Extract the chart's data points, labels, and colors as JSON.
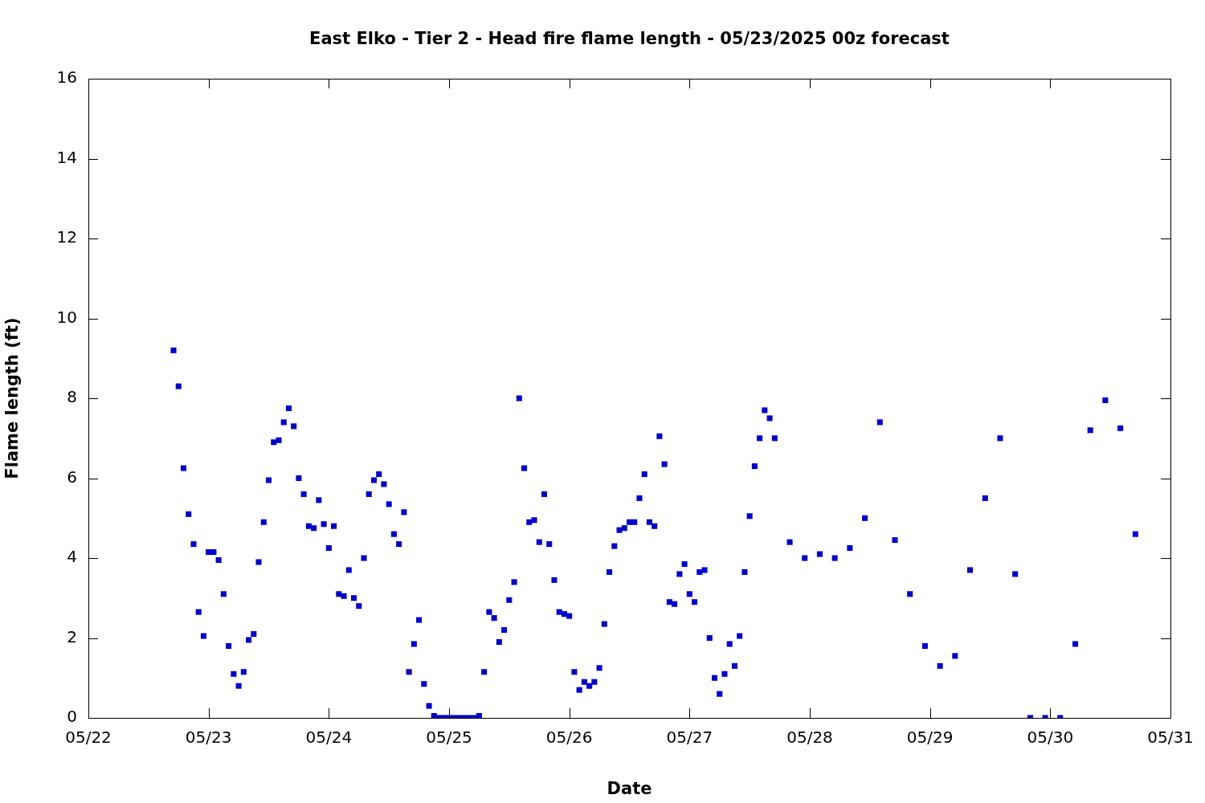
{
  "chart_data": {
    "type": "scatter",
    "title": "East Elko - Tier 2 - Head fire flame length - 05/23/2025 00z forecast",
    "xlabel": "Date",
    "ylabel": "Flame length (ft)",
    "x": [
      "2025-05-22T17:00",
      "2025-05-22T18:00",
      "2025-05-22T19:00",
      "2025-05-22T20:00",
      "2025-05-22T21:00",
      "2025-05-22T22:00",
      "2025-05-22T23:00",
      "2025-05-23T00:00",
      "2025-05-23T01:00",
      "2025-05-23T02:00",
      "2025-05-23T03:00",
      "2025-05-23T04:00",
      "2025-05-23T05:00",
      "2025-05-23T06:00",
      "2025-05-23T07:00",
      "2025-05-23T08:00",
      "2025-05-23T09:00",
      "2025-05-23T10:00",
      "2025-05-23T11:00",
      "2025-05-23T12:00",
      "2025-05-23T13:00",
      "2025-05-23T14:00",
      "2025-05-23T15:00",
      "2025-05-23T16:00",
      "2025-05-23T17:00",
      "2025-05-23T18:00",
      "2025-05-23T19:00",
      "2025-05-23T20:00",
      "2025-05-23T21:00",
      "2025-05-23T22:00",
      "2025-05-23T23:00",
      "2025-05-24T00:00",
      "2025-05-24T01:00",
      "2025-05-24T02:00",
      "2025-05-24T03:00",
      "2025-05-24T04:00",
      "2025-05-24T05:00",
      "2025-05-24T06:00",
      "2025-05-24T07:00",
      "2025-05-24T08:00",
      "2025-05-24T09:00",
      "2025-05-24T10:00",
      "2025-05-24T11:00",
      "2025-05-24T12:00",
      "2025-05-24T13:00",
      "2025-05-24T14:00",
      "2025-05-24T15:00",
      "2025-05-24T16:00",
      "2025-05-24T17:00",
      "2025-05-24T18:00",
      "2025-05-24T19:00",
      "2025-05-24T20:00",
      "2025-05-24T21:00",
      "2025-05-24T22:00",
      "2025-05-24T23:00",
      "2025-05-25T00:00",
      "2025-05-25T01:00",
      "2025-05-25T02:00",
      "2025-05-25T03:00",
      "2025-05-25T04:00",
      "2025-05-25T05:00",
      "2025-05-25T06:00",
      "2025-05-25T07:00",
      "2025-05-25T08:00",
      "2025-05-25T09:00",
      "2025-05-25T10:00",
      "2025-05-25T11:00",
      "2025-05-25T12:00",
      "2025-05-25T13:00",
      "2025-05-25T14:00",
      "2025-05-25T15:00",
      "2025-05-25T16:00",
      "2025-05-25T17:00",
      "2025-05-25T18:00",
      "2025-05-25T19:00",
      "2025-05-25T20:00",
      "2025-05-25T21:00",
      "2025-05-25T22:00",
      "2025-05-25T23:00",
      "2025-05-26T00:00",
      "2025-05-26T01:00",
      "2025-05-26T02:00",
      "2025-05-26T03:00",
      "2025-05-26T04:00",
      "2025-05-26T05:00",
      "2025-05-26T06:00",
      "2025-05-26T07:00",
      "2025-05-26T08:00",
      "2025-05-26T09:00",
      "2025-05-26T10:00",
      "2025-05-26T11:00",
      "2025-05-26T12:00",
      "2025-05-26T13:00",
      "2025-05-26T14:00",
      "2025-05-26T15:00",
      "2025-05-26T16:00",
      "2025-05-26T17:00",
      "2025-05-26T18:00",
      "2025-05-26T19:00",
      "2025-05-26T20:00",
      "2025-05-26T21:00",
      "2025-05-26T22:00",
      "2025-05-26T23:00",
      "2025-05-27T00:00",
      "2025-05-27T01:00",
      "2025-05-27T02:00",
      "2025-05-27T03:00",
      "2025-05-27T04:00",
      "2025-05-27T05:00",
      "2025-05-27T06:00",
      "2025-05-27T07:00",
      "2025-05-27T08:00",
      "2025-05-27T09:00",
      "2025-05-27T10:00",
      "2025-05-27T11:00",
      "2025-05-27T12:00",
      "2025-05-27T13:00",
      "2025-05-27T14:00",
      "2025-05-27T15:00",
      "2025-05-27T16:00",
      "2025-05-27T17:00",
      "2025-05-27T20:00",
      "2025-05-27T23:00",
      "2025-05-28T02:00",
      "2025-05-28T05:00",
      "2025-05-28T08:00",
      "2025-05-28T11:00",
      "2025-05-28T14:00",
      "2025-05-28T17:00",
      "2025-05-28T20:00",
      "2025-05-28T23:00",
      "2025-05-29T02:00",
      "2025-05-29T05:00",
      "2025-05-29T08:00",
      "2025-05-29T11:00",
      "2025-05-29T14:00",
      "2025-05-29T17:00",
      "2025-05-29T20:00",
      "2025-05-29T23:00",
      "2025-05-30T02:00",
      "2025-05-30T05:00",
      "2025-05-30T08:00",
      "2025-05-30T11:00",
      "2025-05-30T14:00",
      "2025-05-30T17:00"
    ],
    "series": [
      {
        "color": "#0000cc",
        "values": [
          9.2,
          8.3,
          6.25,
          5.1,
          4.35,
          2.65,
          2.05,
          4.15,
          4.15,
          3.95,
          3.1,
          1.8,
          1.1,
          0.8,
          1.15,
          1.95,
          2.1,
          3.9,
          4.9,
          5.95,
          6.9,
          6.95,
          7.4,
          7.75,
          7.3,
          6,
          5.6,
          4.8,
          4.75,
          5.45,
          4.85,
          4.25,
          4.8,
          3.1,
          3.05,
          3.7,
          3,
          2.8,
          4,
          5.6,
          5.95,
          6.1,
          5.85,
          5.35,
          4.6,
          4.35,
          5.15,
          1.15,
          1.85,
          2.45,
          0.85,
          0.3,
          0.05,
          0,
          0,
          0,
          0,
          0,
          0,
          0,
          0,
          0.05,
          1.15,
          2.65,
          2.5,
          1.9,
          2.2,
          2.95,
          3.4,
          8,
          6.25,
          4.9,
          4.95,
          4.4,
          5.6,
          4.35,
          3.45,
          2.65,
          2.6,
          2.55,
          1.15,
          0.7,
          0.9,
          0.8,
          0.9,
          1.25,
          2.35,
          3.65,
          4.3,
          4.7,
          4.75,
          4.9,
          4.9,
          5.5,
          6.1,
          4.9,
          4.8,
          7.05,
          6.35,
          2.9,
          2.85,
          3.6,
          3.85,
          3.1,
          2.9,
          3.65,
          3.7,
          2,
          1,
          0.6,
          1.1,
          1.85,
          1.3,
          2.05,
          3.65,
          5.05,
          6.3,
          7,
          7.7,
          7.5,
          7,
          4.4,
          4,
          4.1,
          4,
          4.25,
          5,
          7.4,
          4.45,
          3.1,
          1.8,
          1.3,
          1.55,
          3.7,
          5.5,
          7,
          3.6,
          0,
          0,
          0,
          1.85,
          7.2,
          7.95,
          7.25,
          4.6
        ]
      }
    ],
    "xlim": [
      "2025-05-22",
      "2025-05-31"
    ],
    "xticks": [
      {
        "value": "2025-05-22",
        "label": "05/22"
      },
      {
        "value": "2025-05-23",
        "label": "05/23"
      },
      {
        "value": "2025-05-24",
        "label": "05/24"
      },
      {
        "value": "2025-05-25",
        "label": "05/25"
      },
      {
        "value": "2025-05-26",
        "label": "05/26"
      },
      {
        "value": "2025-05-27",
        "label": "05/27"
      },
      {
        "value": "2025-05-28",
        "label": "05/28"
      },
      {
        "value": "2025-05-29",
        "label": "05/29"
      },
      {
        "value": "2025-05-30",
        "label": "05/30"
      },
      {
        "value": "2025-05-31",
        "label": "05/31"
      }
    ],
    "ylim": [
      0,
      16
    ],
    "yticks": [
      0,
      2,
      4,
      6,
      8,
      10,
      12,
      14,
      16
    ],
    "grid": false,
    "legend": false,
    "marker": "square"
  }
}
